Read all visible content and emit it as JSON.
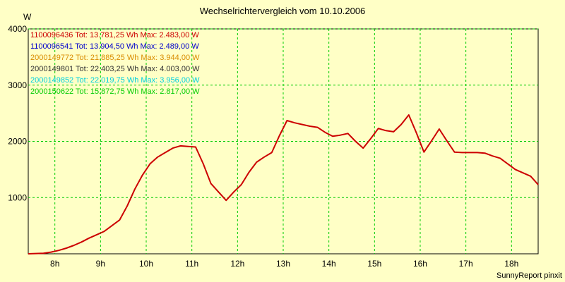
{
  "chart_data": {
    "type": "line",
    "title": "Wechselrichtervergleich vom 10.10.2006",
    "ylabel": "W",
    "xlabel": "",
    "footer": "SunnyReport pinxit",
    "xlim": [
      7.417,
      18.583
    ],
    "ylim": [
      0,
      4000
    ],
    "yticks": [
      1000,
      2000,
      3000,
      4000
    ],
    "xticks": [
      {
        "x": 8,
        "label": "8h"
      },
      {
        "x": 9,
        "label": "9h"
      },
      {
        "x": 10,
        "label": "10h"
      },
      {
        "x": 11,
        "label": "11h"
      },
      {
        "x": 12,
        "label": "12h"
      },
      {
        "x": 13,
        "label": "13h"
      },
      {
        "x": 14,
        "label": "14h"
      },
      {
        "x": 15,
        "label": "15h"
      },
      {
        "x": 16,
        "label": "16h"
      },
      {
        "x": 17,
        "label": "17h"
      },
      {
        "x": 18,
        "label": "18h"
      }
    ],
    "grid": true,
    "legend_position": "top-left",
    "x": [
      7.417,
      7.583,
      7.75,
      7.917,
      8.083,
      8.25,
      8.417,
      8.583,
      8.75,
      8.917,
      9.083,
      9.25,
      9.417,
      9.583,
      9.75,
      9.917,
      10.083,
      10.25,
      10.417,
      10.583,
      10.75,
      10.917,
      11.083,
      11.25,
      11.417,
      11.583,
      11.75,
      11.917,
      12.083,
      12.25,
      12.417,
      12.583,
      12.75,
      12.917,
      13.083,
      13.25,
      13.417,
      13.583,
      13.75,
      13.917,
      14.083,
      14.25,
      14.417,
      14.583,
      14.75,
      14.917,
      15.083,
      15.25,
      15.417,
      15.583,
      15.75,
      15.917,
      16.083,
      16.25,
      16.417,
      16.583,
      16.75,
      16.917,
      17.083,
      17.25,
      17.417,
      17.583,
      17.75,
      17.917,
      18.083,
      18.25,
      18.417,
      18.583
    ],
    "series": [
      {
        "name": "1100096436 Tot: 13.781,25 Wh Max: 2.483,00 W",
        "color": "#cc0000",
        "values": [
          0,
          5,
          10,
          30,
          60,
          100,
          150,
          210,
          280,
          340,
          400,
          500,
          600,
          850,
          1150,
          1400,
          1600,
          1720,
          1800,
          1880,
          1920,
          1910,
          1900,
          1600,
          1250,
          1100,
          950,
          1100,
          1230,
          1450,
          1630,
          1720,
          1800,
          2100,
          2370,
          2330,
          2300,
          2270,
          2250,
          2160,
          2090,
          2110,
          2140,
          2000,
          1880,
          2050,
          2230,
          2190,
          2170,
          2300,
          2470,
          2150,
          1810,
          2010,
          2220,
          2010,
          1810,
          1800,
          1800,
          1800,
          1790,
          1740,
          1700,
          1600,
          1500,
          1440,
          1380,
          1230
        ]
      }
    ]
  },
  "series_names": [
    {
      "name": "1100096436 Tot: 13.781,25 Wh Max: 2.483,00 W",
      "color": "#cc0000"
    },
    {
      "name": "1100096541 Tot: 13.904,50 Wh Max: 2.489,00 W",
      "color": "#0000cc"
    },
    {
      "name": "2000149772 Tot: 21.885,25 Wh Max: 3.944,00 W",
      "color": "#d98c00"
    },
    {
      "name": "2000149801 Tot: 22.403,25 Wh Max: 4.003,00 W",
      "color": "#333333"
    },
    {
      "name": "2000149852 Tot: 22.019,75 Wh Max: 3.956,00 W",
      "color": "#00d0e0"
    },
    {
      "name": "2000150622 Tot: 15.872,75 Wh Max: 2.817,00 W",
      "color": "#00cc00"
    }
  ]
}
